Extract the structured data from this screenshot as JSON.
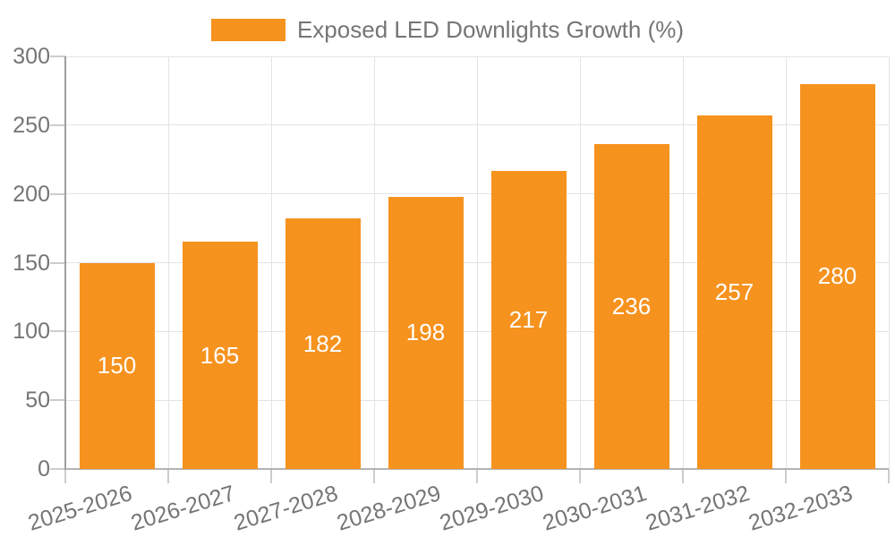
{
  "chart_data": {
    "type": "bar",
    "title": "",
    "legend": "Exposed LED Downlights Growth (%)",
    "legend_position": "top-center",
    "categories": [
      "2025-2026",
      "2026-2027",
      "2027-2028",
      "2028-2029",
      "2029-2030",
      "2030-2031",
      "2031-2032",
      "2032-2033"
    ],
    "values": [
      150,
      165,
      182,
      198,
      217,
      236,
      257,
      280
    ],
    "xlabel": "",
    "ylabel": "",
    "ylim": [
      0,
      300
    ],
    "yticks": [
      0,
      50,
      100,
      150,
      200,
      250,
      300
    ],
    "grid": true,
    "value_labels": "inside-center",
    "colors": {
      "bar": "#F6921E",
      "grid": "#E3E3E3",
      "axis_y": "#9E9E9E",
      "axis_x": "#B3B3B3",
      "tick": "#CCCCCC",
      "text": "#757575",
      "value_label": "#FFFFFF",
      "background": "#FFFFFF"
    }
  }
}
